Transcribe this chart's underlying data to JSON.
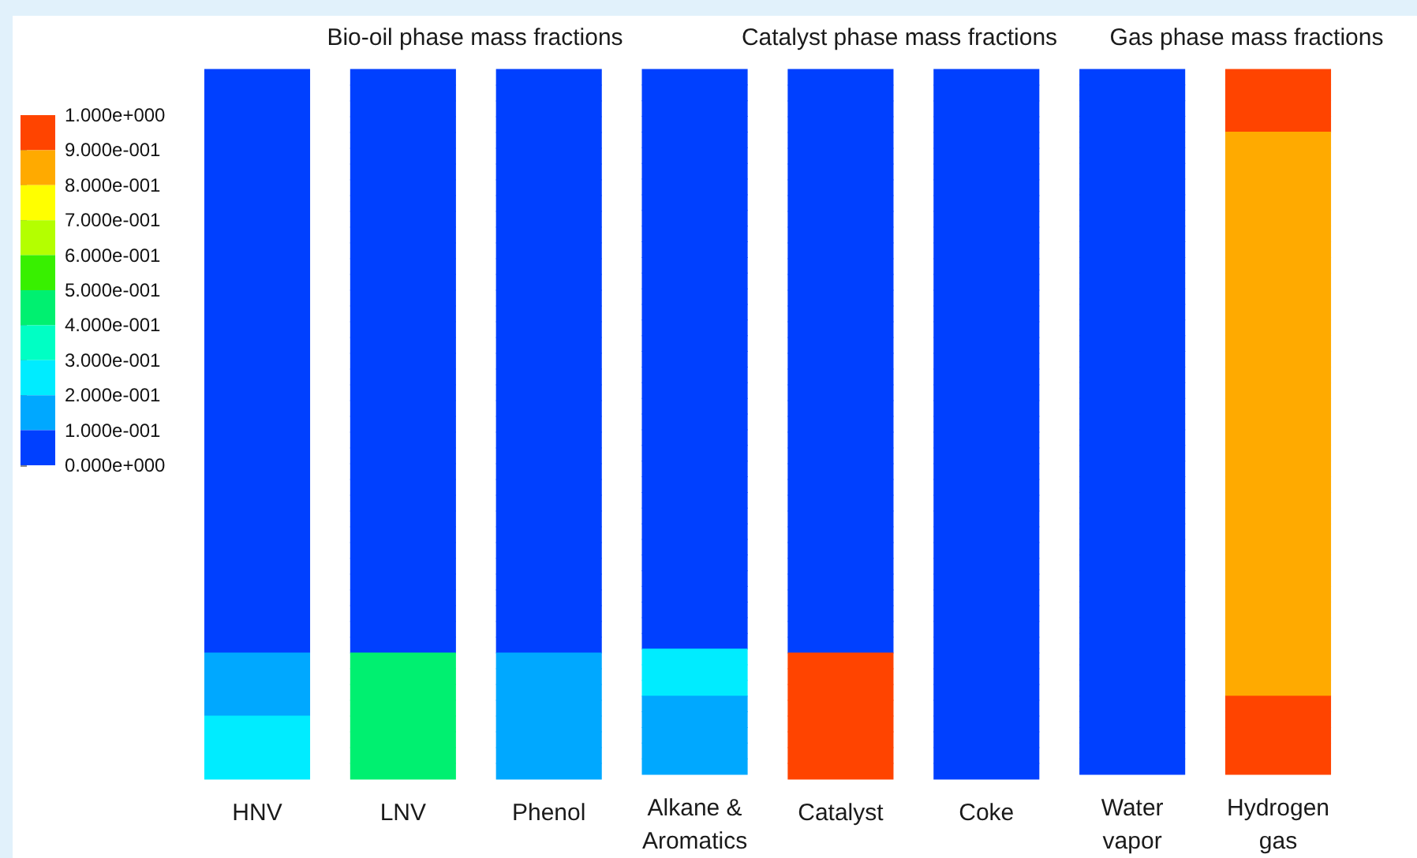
{
  "chart_data": {
    "type": "heatmap",
    "annotations": [
      "Bio-oil phase mass fractions",
      "Catalyst phase mass fractions",
      "Gas phase mass fractions"
    ],
    "categories": [
      "HNV",
      "LNV",
      "Phenol",
      "Alkane & Aromatics",
      "Catalyst",
      "Coke",
      "Water vapor",
      "Hydrogen gas"
    ],
    "y_categories": [
      null,
      null,
      null,
      null,
      null,
      null,
      null,
      null,
      null,
      null,
      null,
      null,
      null,
      null,
      null,
      null,
      null,
      null,
      null,
      null,
      null,
      null,
      null,
      null,
      null,
      null,
      null,
      null,
      null,
      null,
      null,
      null,
      null,
      null,
      null,
      null,
      null,
      null,
      null,
      null,
      null,
      null,
      null,
      null,
      null
    ],
    "cells": [
      [
        0.05,
        0.05,
        0.05,
        0.05,
        0.05,
        0.05,
        0.05,
        0.95
      ],
      [
        0.05,
        0.05,
        0.05,
        0.05,
        0.05,
        0.05,
        0.05,
        0.95
      ],
      [
        0.05,
        0.05,
        0.05,
        0.05,
        0.05,
        0.05,
        0.05,
        0.95
      ],
      [
        0.05,
        0.05,
        0.05,
        0.05,
        0.05,
        0.05,
        0.05,
        0.95
      ],
      [
        0.05,
        0.05,
        0.05,
        0.05,
        0.05,
        0.05,
        0.05,
        0.85
      ],
      [
        0.05,
        0.05,
        0.05,
        0.05,
        0.05,
        0.05,
        0.05,
        0.85
      ],
      [
        0.05,
        0.05,
        0.05,
        0.05,
        0.05,
        0.05,
        0.05,
        0.85
      ],
      [
        0.05,
        0.05,
        0.05,
        0.05,
        0.05,
        0.05,
        0.05,
        0.85
      ],
      [
        0.05,
        0.05,
        0.05,
        0.05,
        0.05,
        0.05,
        0.05,
        0.85
      ],
      [
        0.05,
        0.05,
        0.05,
        0.05,
        0.05,
        0.05,
        0.05,
        0.85
      ],
      [
        0.05,
        0.05,
        0.05,
        0.05,
        0.05,
        0.05,
        0.05,
        0.85
      ],
      [
        0.05,
        0.05,
        0.05,
        0.05,
        0.05,
        0.05,
        0.05,
        0.85
      ],
      [
        0.05,
        0.05,
        0.05,
        0.05,
        0.05,
        0.05,
        0.05,
        0.85
      ],
      [
        0.05,
        0.05,
        0.05,
        0.05,
        0.05,
        0.05,
        0.05,
        0.85
      ],
      [
        0.05,
        0.05,
        0.05,
        0.05,
        0.05,
        0.05,
        0.05,
        0.85
      ],
      [
        0.05,
        0.05,
        0.05,
        0.05,
        0.05,
        0.05,
        0.05,
        0.85
      ],
      [
        0.05,
        0.05,
        0.05,
        0.05,
        0.05,
        0.05,
        0.05,
        0.85
      ],
      [
        0.05,
        0.05,
        0.05,
        0.05,
        0.05,
        0.05,
        0.05,
        0.85
      ],
      [
        0.05,
        0.05,
        0.05,
        0.05,
        0.05,
        0.05,
        0.05,
        0.85
      ],
      [
        0.05,
        0.05,
        0.05,
        0.05,
        0.05,
        0.05,
        0.05,
        0.85
      ],
      [
        0.05,
        0.05,
        0.05,
        0.05,
        0.05,
        0.05,
        0.05,
        0.85
      ],
      [
        0.05,
        0.05,
        0.05,
        0.05,
        0.05,
        0.05,
        0.05,
        0.85
      ],
      [
        0.05,
        0.05,
        0.05,
        0.05,
        0.05,
        0.05,
        0.05,
        0.85
      ],
      [
        0.05,
        0.05,
        0.05,
        0.05,
        0.05,
        0.05,
        0.05,
        0.85
      ],
      [
        0.05,
        0.05,
        0.05,
        0.05,
        0.05,
        0.05,
        0.05,
        0.85
      ],
      [
        0.05,
        0.05,
        0.05,
        0.05,
        0.05,
        0.05,
        0.05,
        0.85
      ],
      [
        0.05,
        0.05,
        0.05,
        0.05,
        0.05,
        0.05,
        0.05,
        0.85
      ],
      [
        0.05,
        0.05,
        0.05,
        0.05,
        0.05,
        0.05,
        0.05,
        0.85
      ],
      [
        0.05,
        0.05,
        0.05,
        0.05,
        0.05,
        0.05,
        0.05,
        0.85
      ],
      [
        0.05,
        0.05,
        0.05,
        0.05,
        0.05,
        0.05,
        0.05,
        0.85
      ],
      [
        0.05,
        0.05,
        0.05,
        0.05,
        0.05,
        0.05,
        0.05,
        0.85
      ],
      [
        0.05,
        0.05,
        0.05,
        0.05,
        0.05,
        0.05,
        0.05,
        0.85
      ],
      [
        0.05,
        0.05,
        0.05,
        0.05,
        0.05,
        0.05,
        0.05,
        0.85
      ],
      [
        0.05,
        0.05,
        0.05,
        0.05,
        0.05,
        0.05,
        0.05,
        0.85
      ],
      [
        0.05,
        0.05,
        0.05,
        0.05,
        0.05,
        0.05,
        0.05,
        0.85
      ],
      [
        0.05,
        0.05,
        0.05,
        0.05,
        0.05,
        0.05,
        0.05,
        0.85
      ],
      [
        0.05,
        0.05,
        0.05,
        0.05,
        0.05,
        0.05,
        0.05,
        0.85
      ],
      [
        0.15,
        0.45,
        0.15,
        0.25,
        0.95,
        0.05,
        0.05,
        0.85
      ],
      [
        0.15,
        0.45,
        0.15,
        0.25,
        0.95,
        0.05,
        0.05,
        0.85
      ],
      [
        0.15,
        0.45,
        0.15,
        0.25,
        0.95,
        0.05,
        0.05,
        0.85
      ],
      [
        0.15,
        0.45,
        0.15,
        0.15,
        0.95,
        0.05,
        0.05,
        0.95
      ],
      [
        0.25,
        0.45,
        0.15,
        0.15,
        0.95,
        0.05,
        0.05,
        0.95
      ],
      [
        0.25,
        0.45,
        0.15,
        0.15,
        0.95,
        0.05,
        0.05,
        0.95
      ],
      [
        0.25,
        0.45,
        0.15,
        0.15,
        0.95,
        0.05,
        0.05,
        0.95
      ],
      [
        0.25,
        0.45,
        0.15,
        0.15,
        0.95,
        0.05,
        0.05,
        0.95
      ]
    ],
    "clim": [
      0,
      1
    ],
    "cticks": [
      {
        "value": 0,
        "label": "0.000e+000"
      },
      {
        "value": 0.1,
        "label": "1.000e-001"
      },
      {
        "value": 0.2,
        "label": "2.000e-001"
      },
      {
        "value": 0.3,
        "label": "3.000e-001"
      },
      {
        "value": 0.4,
        "label": "4.000e-001"
      },
      {
        "value": 0.5,
        "label": "5.000e-001"
      },
      {
        "value": 0.6,
        "label": "6.000e-001"
      },
      {
        "value": 0.7,
        "label": "7.000e-001"
      },
      {
        "value": 0.8,
        "label": "8.000e-001"
      },
      {
        "value": 0.9,
        "label": "9.000e-001"
      },
      {
        "value": 1,
        "label": "1.000e+000"
      }
    ]
  }
}
